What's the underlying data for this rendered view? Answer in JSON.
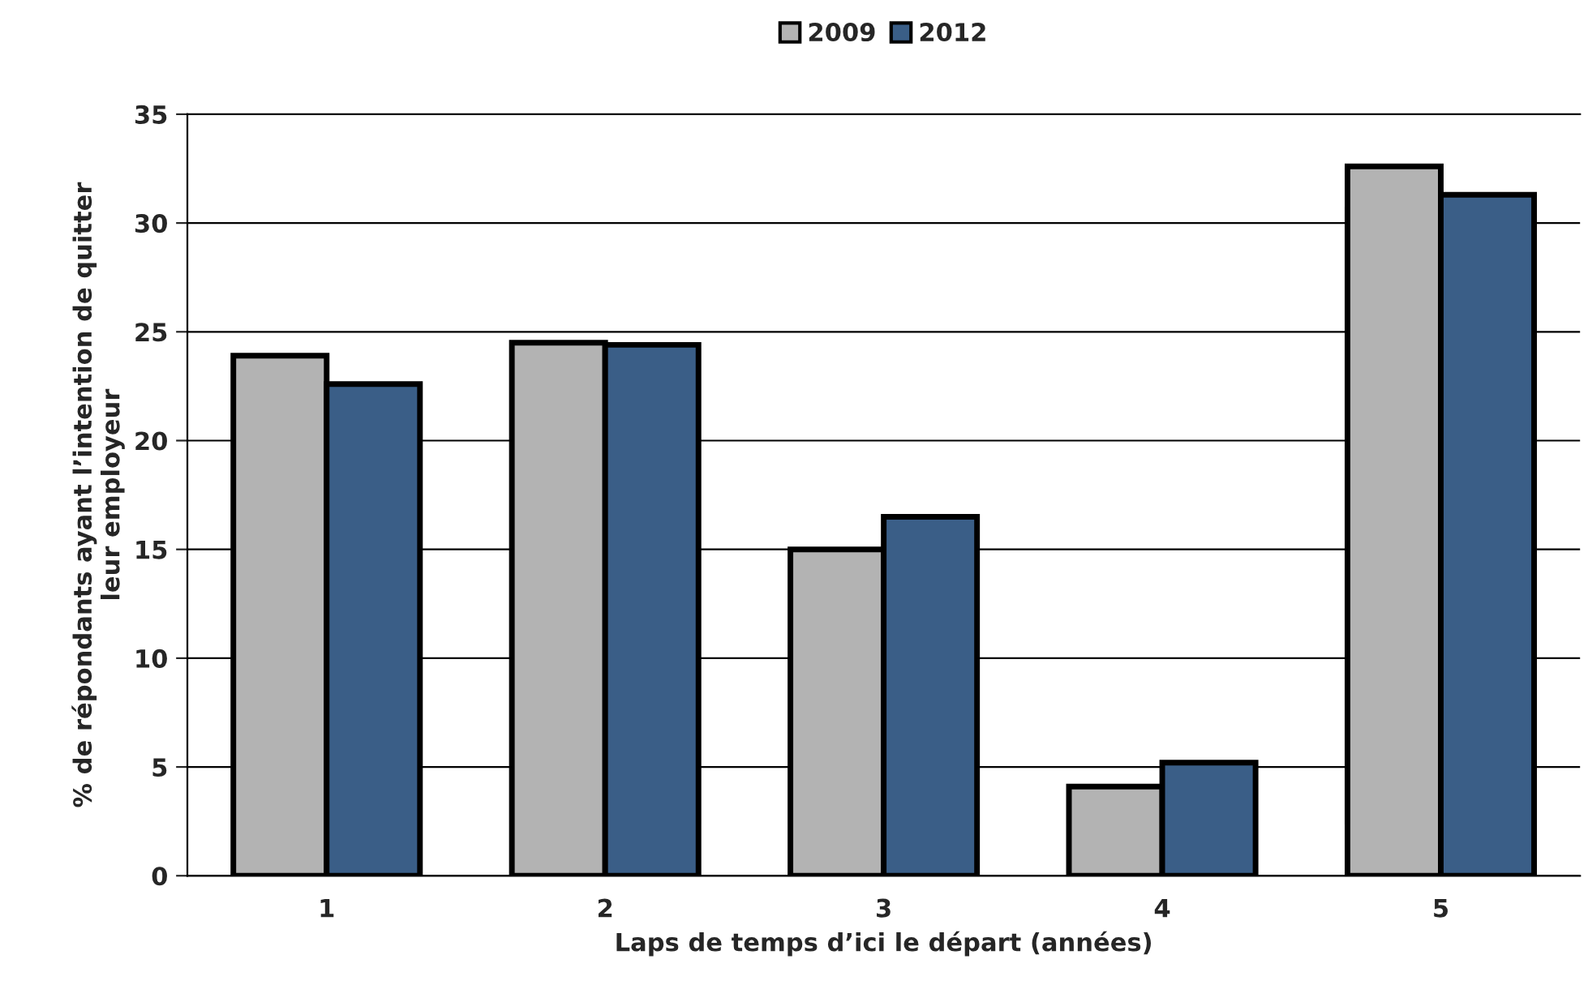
{
  "chart_data": {
    "type": "bar",
    "categories": [
      "1",
      "2",
      "3",
      "4",
      "5"
    ],
    "series": [
      {
        "name": "2009",
        "color": "#b3b3b3",
        "values": [
          23.9,
          24.5,
          15.0,
          4.1,
          32.6
        ]
      },
      {
        "name": "2012",
        "color": "#3a5e87",
        "values": [
          22.6,
          24.4,
          16.5,
          5.2,
          31.3
        ]
      }
    ],
    "xlabel": "Laps de temps d’ici le départ (années)",
    "ylabel": "% de répondants ayant l’intention de quitter\nleur employeur",
    "ylim": [
      0,
      35
    ],
    "yticks": [
      0,
      5,
      10,
      15,
      20,
      25,
      30,
      35
    ],
    "grid": "y",
    "legend": "top"
  }
}
